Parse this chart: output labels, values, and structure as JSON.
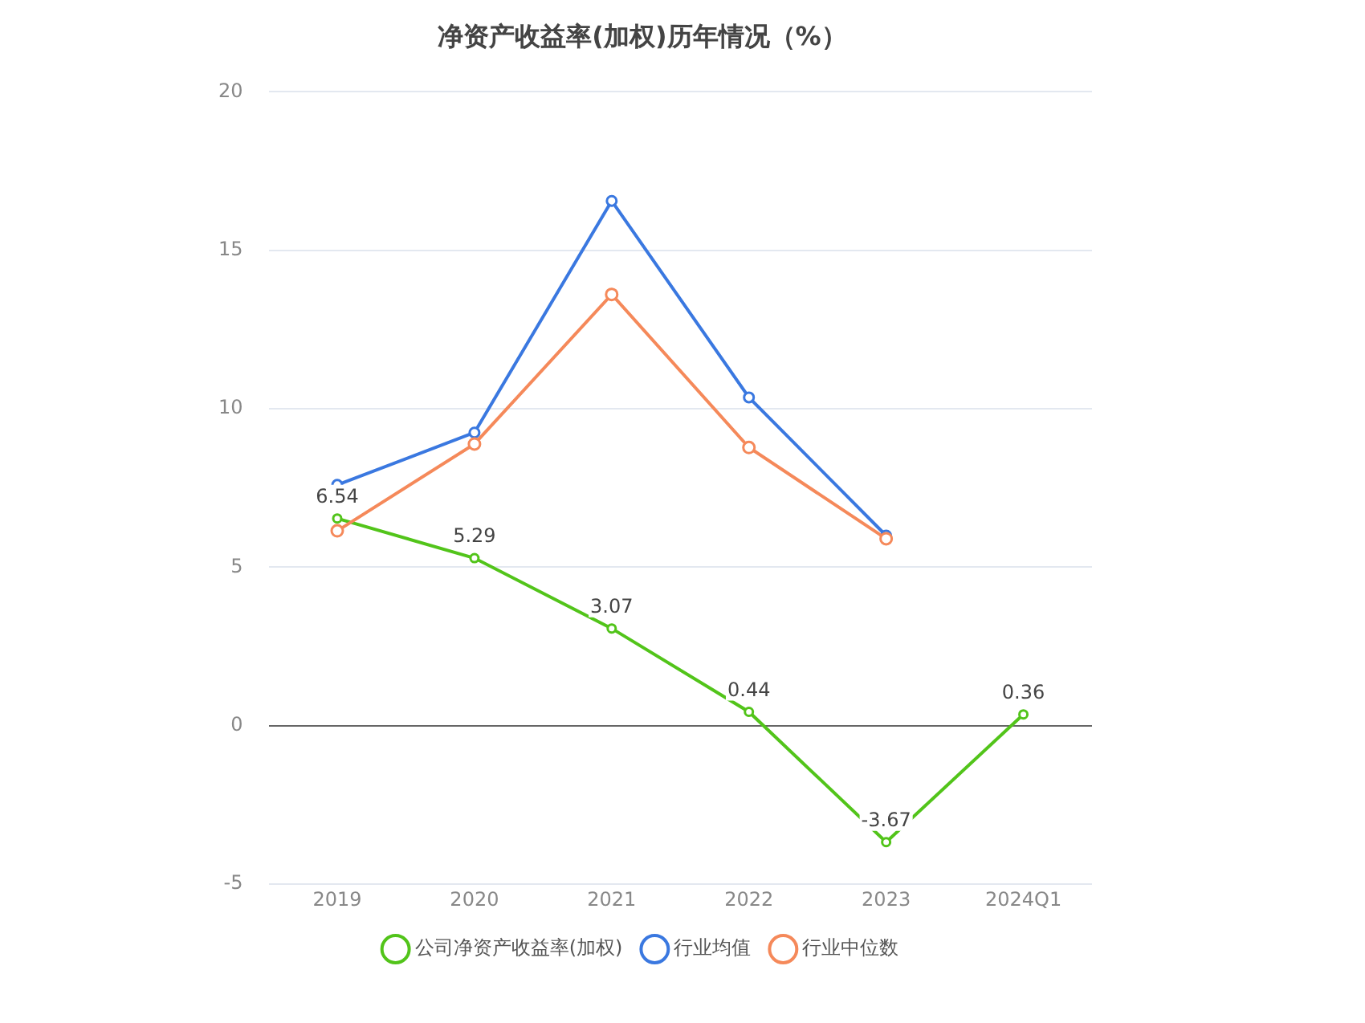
{
  "chart_data": {
    "type": "line",
    "title": "净资产收益率(加权)历年情况（%）",
    "categories": [
      "2019",
      "2020",
      "2021",
      "2022",
      "2023",
      "2024Q1"
    ],
    "series": [
      {
        "name": "公司净资产收益率(加权)",
        "color": "#52c41a",
        "values": [
          6.54,
          5.29,
          3.07,
          0.44,
          -3.67,
          0.36
        ],
        "value_labels": [
          "6.54",
          "5.29",
          "3.07",
          "0.44",
          "-3.67",
          "0.36"
        ]
      },
      {
        "name": "行业均值",
        "color": "#3a78e0",
        "values": [
          7.6,
          9.25,
          16.56,
          10.36,
          6.0,
          null
        ]
      },
      {
        "name": "行业中位数",
        "color": "#f5895a",
        "values": [
          6.15,
          8.89,
          13.61,
          8.78,
          5.9,
          null
        ]
      }
    ],
    "ylim": [
      -5,
      20
    ],
    "yticks": [
      -5,
      0,
      5,
      10,
      15,
      20
    ],
    "grid": "y",
    "legend": "bottom",
    "marker": "circle"
  }
}
